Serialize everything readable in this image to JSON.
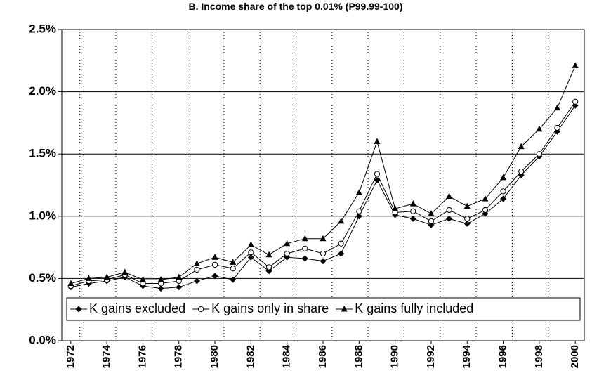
{
  "chart_data": {
    "type": "line",
    "title": "B. Income share of the top 0.01% (P99.99-100)",
    "categories": [
      "1972",
      null,
      "1974",
      null,
      "1976",
      null,
      "1978",
      null,
      "1980",
      null,
      "1982",
      null,
      "1984",
      null,
      "1986",
      null,
      "1988",
      null,
      "1990",
      null,
      "1992",
      null,
      "1994",
      null,
      "1996",
      null,
      "1998",
      null,
      "2000"
    ],
    "series": [
      {
        "name": "K gains excluded",
        "color": "#000000",
        "marker": "diamond",
        "values": [
          0.43,
          0.46,
          0.48,
          0.51,
          0.44,
          0.42,
          0.43,
          0.48,
          0.52,
          0.49,
          0.67,
          0.56,
          0.67,
          0.66,
          0.64,
          0.7,
          1.0,
          1.29,
          1.01,
          0.98,
          0.93,
          0.98,
          0.94,
          1.02,
          1.14,
          1.33,
          1.48,
          1.68,
          1.89
        ]
      },
      {
        "name": "K gains only in share",
        "color": "#000000",
        "marker": "circle",
        "values": [
          0.44,
          0.48,
          0.49,
          0.53,
          0.46,
          0.46,
          0.48,
          0.57,
          0.61,
          0.58,
          0.71,
          0.59,
          0.7,
          0.74,
          0.7,
          0.78,
          1.04,
          1.34,
          1.03,
          1.04,
          0.96,
          1.05,
          0.98,
          1.05,
          1.2,
          1.36,
          1.5,
          1.71,
          1.92
        ]
      },
      {
        "name": "K gains fully included",
        "color": "#000000",
        "marker": "triangle",
        "values": [
          0.46,
          0.5,
          0.51,
          0.55,
          0.49,
          0.49,
          0.51,
          0.62,
          0.67,
          0.63,
          0.77,
          0.69,
          0.78,
          0.82,
          0.82,
          0.96,
          1.19,
          1.6,
          1.06,
          1.1,
          1.02,
          1.16,
          1.08,
          1.14,
          1.31,
          1.56,
          1.7,
          1.87,
          2.21
        ]
      }
    ],
    "ylim": [
      0,
      2.5
    ],
    "yticks": [
      {
        "value": 0,
        "label": "0.0%"
      },
      {
        "value": 0.5,
        "label": "0.5%"
      },
      {
        "value": 1.0,
        "label": "1.0%"
      },
      {
        "value": 1.5,
        "label": "1.5%"
      },
      {
        "value": 2.0,
        "label": "2.0%"
      },
      {
        "value": 2.5,
        "label": "2.5%"
      }
    ],
    "grid": true,
    "legend": "bottom"
  }
}
